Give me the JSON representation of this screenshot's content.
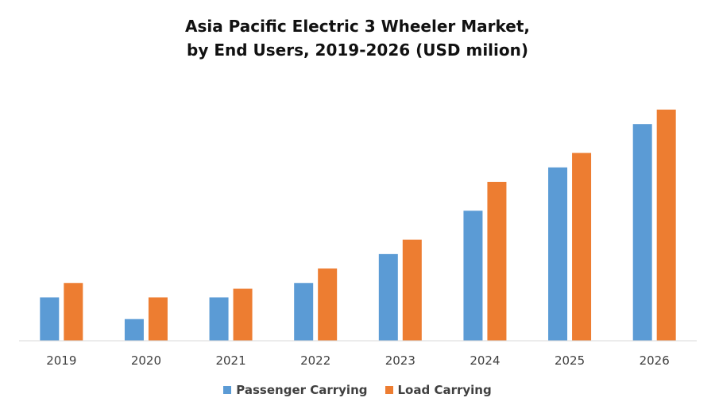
{
  "chart_data": {
    "type": "bar",
    "title_line1": "Asia Pacific Electric 3 Wheeler Market,",
    "title_line2": "by End Users, 2019-2026 (USD milion)",
    "xlabel": "",
    "ylabel": "",
    "categories": [
      "2019",
      "2020",
      "2021",
      "2022",
      "2023",
      "2024",
      "2025",
      "2026"
    ],
    "series": [
      {
        "name": "Passenger Carrying",
        "color": "#5B9BD5",
        "values": [
          3,
          1.5,
          3,
          4,
          6,
          9,
          12,
          15
        ]
      },
      {
        "name": "Load Carrying",
        "color": "#ED7D31",
        "values": [
          4,
          3,
          3.6,
          5,
          7,
          11,
          13,
          16
        ]
      }
    ],
    "ylim": [
      0,
      16
    ],
    "grid": false,
    "legend_position": "bottom"
  }
}
